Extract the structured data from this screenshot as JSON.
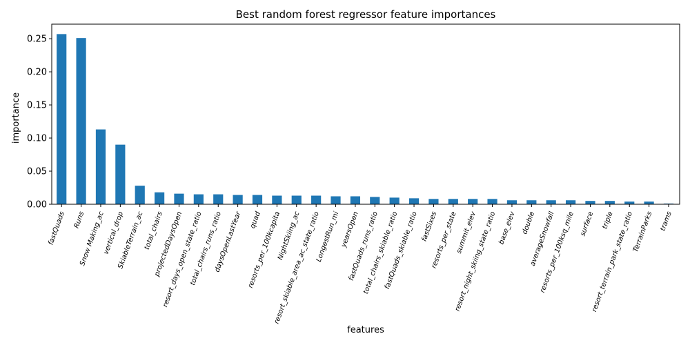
{
  "chart_data": {
    "type": "bar",
    "title": "Best random forest regressor feature importances",
    "xlabel": "features",
    "ylabel": "importance",
    "ylim": [
      0,
      0.272
    ],
    "yticks": [
      "0.00",
      "0.05",
      "0.10",
      "0.15",
      "0.20",
      "0.25"
    ],
    "bar_color": "#1f77b4",
    "grid": false,
    "categories": [
      "fastQuads",
      "Runs",
      "Snow Making_ac",
      "vertical_drop",
      "SkiableTerrain_ac",
      "total_chairs",
      "projectedDaysOpen",
      "resort_days_open_state_ratio",
      "total_chairs_runs_ratio",
      "daysOpenLastYear",
      "quad",
      "resorts_per_100kcapita",
      "NightSkiing_ac",
      "resort_skiable_area_ac_state_ratio",
      "LongestRun_mi",
      "yearsOpen",
      "fastQuads_runs_ratio",
      "total_chairs_skiable_ratio",
      "fastQuads_skiable_ratio",
      "fastSixes",
      "resorts_per_state",
      "summit_elev",
      "resort_night_skiing_state_ratio",
      "base_elev",
      "double",
      "averageSnowfall",
      "resorts_per_100ksq_mile",
      "surface",
      "triple",
      "resort_terrain_park_state_ratio",
      "TerrainParks",
      "trams"
    ],
    "values": [
      0.257,
      0.251,
      0.113,
      0.09,
      0.028,
      0.018,
      0.016,
      0.015,
      0.015,
      0.014,
      0.014,
      0.013,
      0.013,
      0.013,
      0.012,
      0.012,
      0.011,
      0.01,
      0.009,
      0.008,
      0.008,
      0.008,
      0.008,
      0.006,
      0.006,
      0.006,
      0.006,
      0.005,
      0.005,
      0.004,
      0.004,
      0.001
    ]
  }
}
